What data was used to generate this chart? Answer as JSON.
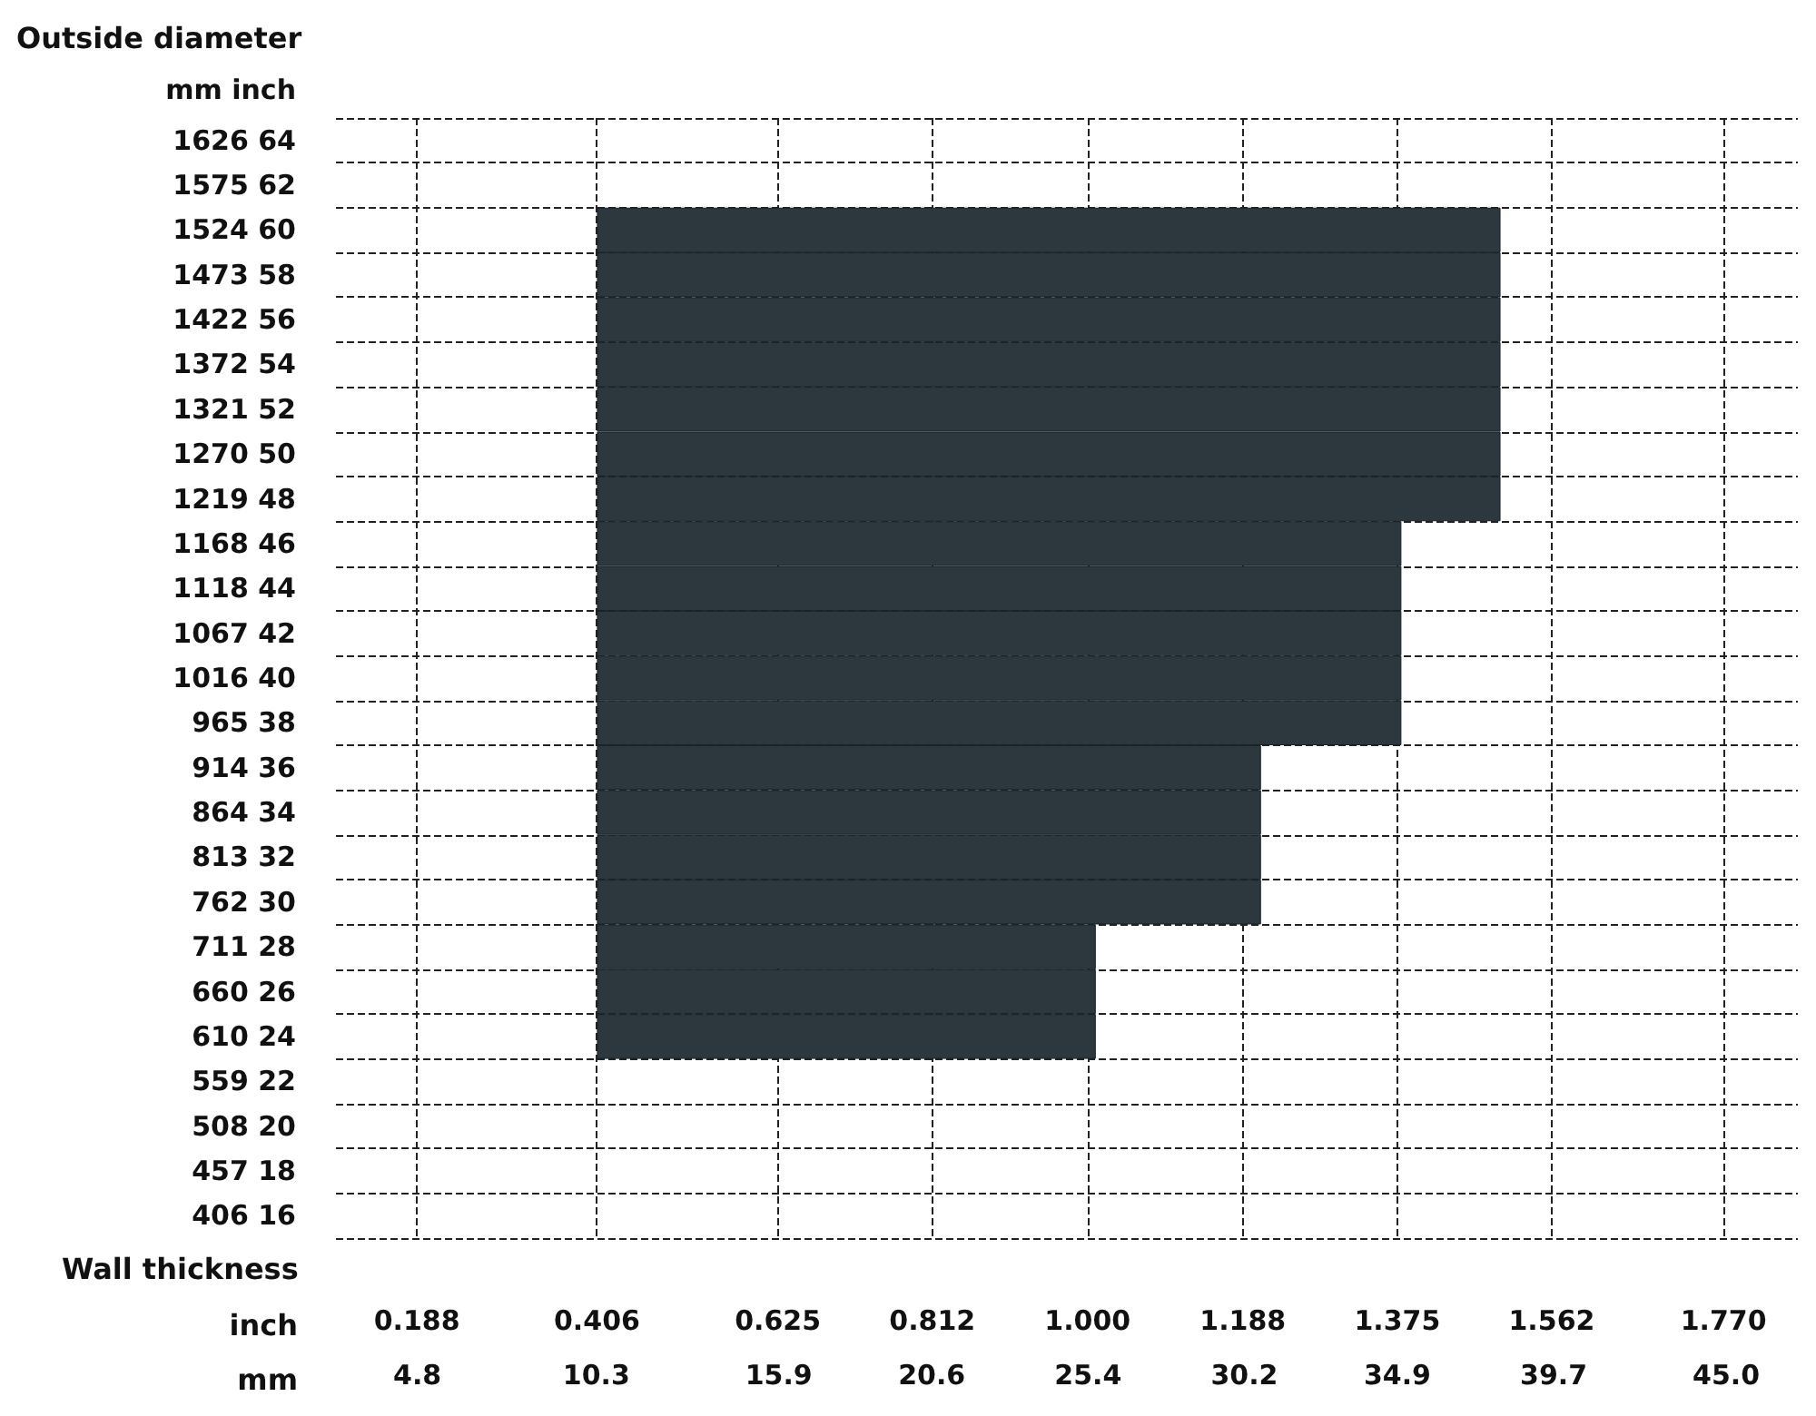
{
  "chart_data": {
    "type": "bar",
    "orientation": "horizontal",
    "title": "Outside diameter",
    "ylabel": "mm inch",
    "xlabel": "Wall thickness",
    "annotations": [
      "inch",
      "mm"
    ],
    "categories": [
      "1626 64",
      "1575 62",
      "1524 60",
      "1473 58",
      "1422 56",
      "1372 54",
      "1321 52",
      "1270 50",
      "1219 48",
      "1168 46",
      "1118 44",
      "1067 42",
      "1016 40",
      "965 38",
      "914 36",
      "864 34",
      "813 32",
      "762 30",
      "711 28",
      "660 26",
      "610 24",
      "559 22",
      "508 20",
      "457 18",
      "406 16"
    ],
    "base": [
      null,
      null,
      0.406,
      0.406,
      0.406,
      0.406,
      0.406,
      0.406,
      0.406,
      0.406,
      0.406,
      0.406,
      0.406,
      0.406,
      0.406,
      0.406,
      0.406,
      0.406,
      0.406,
      0.406,
      0.406,
      null,
      null,
      null,
      null
    ],
    "values": [
      null,
      null,
      1.094,
      1.094,
      1.094,
      1.094,
      1.094,
      1.094,
      1.094,
      0.974,
      0.974,
      0.974,
      0.974,
      0.974,
      0.804,
      0.804,
      0.804,
      0.804,
      0.604,
      0.604,
      0.604,
      null,
      null,
      null,
      null
    ],
    "color": "#2d373e",
    "xlim": [
      0.09,
      1.86
    ],
    "xticks": [
      0.188,
      0.406,
      0.625,
      0.812,
      {
        "value": 1.0,
        "label": "1.000"
      },
      1.188,
      1.375,
      1.562,
      {
        "value": 1.77,
        "label": "1.770"
      }
    ],
    "x2lim": [
      2.3,
      47.2
    ],
    "x2ticks": [
      4.8,
      10.3,
      15.9,
      20.6,
      25.4,
      30.2,
      34.9,
      39.7,
      {
        "value": 45.0,
        "label": "45.0"
      }
    ],
    "grid": true
  }
}
